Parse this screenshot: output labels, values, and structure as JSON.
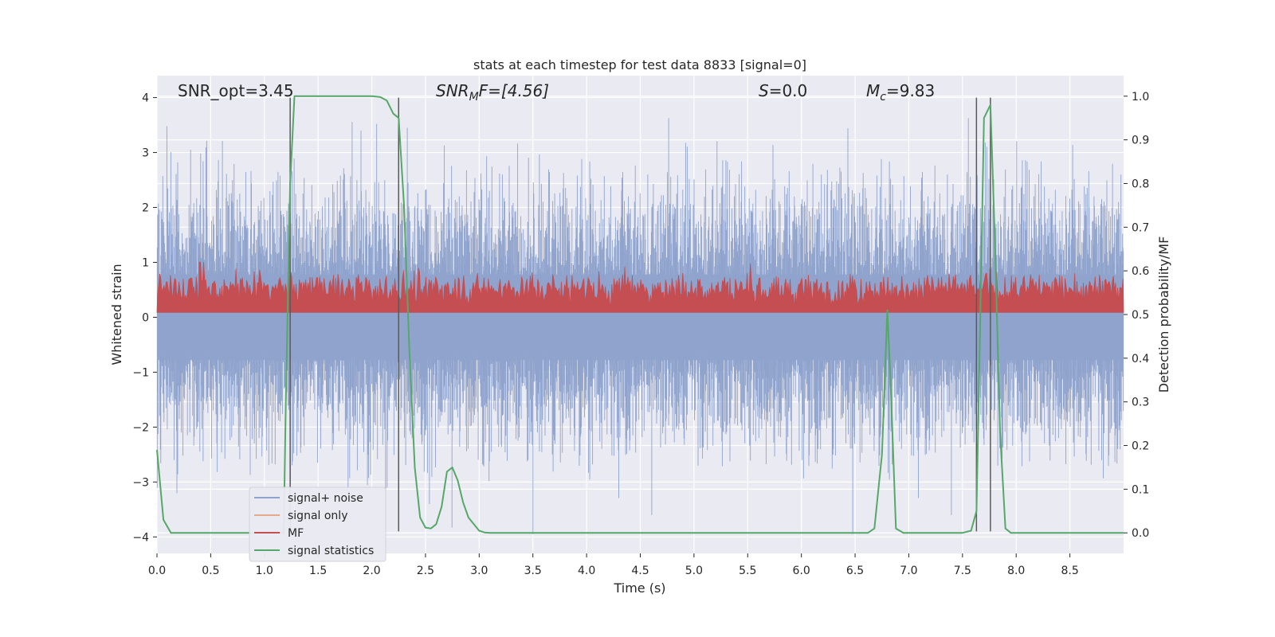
{
  "chart_data": {
    "type": "line",
    "title": "stats at each timestep for test data 8833 [signal=0]",
    "xlabel": "Time (s)",
    "ylabel_left": "Whitened strain",
    "ylabel_right": "Detection probability/MF",
    "xlim": [
      0.0,
      9.0
    ],
    "ylim_left": [
      -4.3,
      4.4
    ],
    "ylim_right": [
      -0.047,
      1.047
    ],
    "x_ticks": [
      "0.0",
      "0.5",
      "1.0",
      "1.5",
      "2.0",
      "2.5",
      "3.0",
      "3.5",
      "4.0",
      "4.5",
      "5.0",
      "5.5",
      "6.0",
      "6.5",
      "7.0",
      "7.5",
      "8.0",
      "8.5"
    ],
    "y_left_ticks": [
      "4",
      "3",
      "2",
      "1",
      "0",
      "−1",
      "−2",
      "−3",
      "−4"
    ],
    "y_right_ticks": [
      "1.0",
      "0.9",
      "0.8",
      "0.7",
      "0.6",
      "0.5",
      "0.4",
      "0.3",
      "0.2",
      "0.1",
      "0.0"
    ],
    "grid": true,
    "annotations": {
      "snr_opt": "SNR_opt=3.45",
      "snr_mf_prefix": "SNR",
      "snr_mf_sub": "M",
      "snr_mf_suffix": "F=[4.56]",
      "s_prefix": "S",
      "s_suffix": "=0.0",
      "mc_prefix": "M",
      "mc_sub": "c",
      "mc_suffix": "=9.83"
    },
    "vertical_lines_x": [
      1.24,
      2.25,
      7.63,
      7.76
    ],
    "series": [
      {
        "name": "signal+ noise",
        "axis": "left",
        "color": "#8fa3cc",
        "shape": "noise",
        "std": 1.0,
        "peak_max": 3.8,
        "peak_min": -3.95
      },
      {
        "name": "signal only",
        "axis": "left",
        "color": "#e8a78f",
        "values": []
      },
      {
        "name": "MF",
        "axis": "right",
        "color": "#c44e52",
        "shape": "noise-band",
        "baseline": 0.505,
        "mean": 0.56,
        "max": 0.62
      },
      {
        "name": "signal statistics",
        "axis": "right",
        "color": "#55a868",
        "x": [
          0.0,
          0.06,
          0.13,
          0.18,
          0.3,
          1.1,
          1.18,
          1.2,
          1.24,
          1.28,
          1.33,
          1.5,
          1.8,
          2.0,
          2.08,
          2.14,
          2.2,
          2.25,
          2.3,
          2.35,
          2.4,
          2.45,
          2.5,
          2.55,
          2.6,
          2.65,
          2.7,
          2.75,
          2.8,
          2.85,
          2.9,
          2.95,
          3.0,
          3.05,
          3.1,
          3.2,
          3.5,
          4.0,
          5.0,
          6.0,
          6.5,
          6.62,
          6.68,
          6.75,
          6.8,
          6.83,
          6.88,
          6.95,
          7.0,
          7.5,
          7.58,
          7.63,
          7.66,
          7.7,
          7.76,
          7.8,
          7.85,
          7.9,
          7.95,
          8.0,
          8.5,
          9.0
        ],
        "values": [
          0.19,
          0.03,
          0.0,
          0.0,
          0.0,
          0.0,
          0.0,
          0.3,
          0.8,
          1.0,
          1.0,
          1.0,
          1.0,
          1.0,
          0.998,
          0.99,
          0.96,
          0.95,
          0.75,
          0.42,
          0.15,
          0.035,
          0.012,
          0.01,
          0.02,
          0.06,
          0.14,
          0.15,
          0.12,
          0.07,
          0.035,
          0.02,
          0.005,
          0.001,
          0.0,
          0.0,
          0.0,
          0.0,
          0.0,
          0.0,
          0.0,
          0.0,
          0.01,
          0.18,
          0.51,
          0.35,
          0.01,
          0.0,
          0.0,
          0.0,
          0.005,
          0.05,
          0.42,
          0.95,
          0.98,
          0.68,
          0.23,
          0.01,
          0.0,
          0.0,
          0.0,
          0.0
        ]
      }
    ],
    "legend": [
      "signal+ noise",
      "signal only",
      "MF",
      "signal statistics"
    ],
    "legend_position": "lower-left"
  }
}
